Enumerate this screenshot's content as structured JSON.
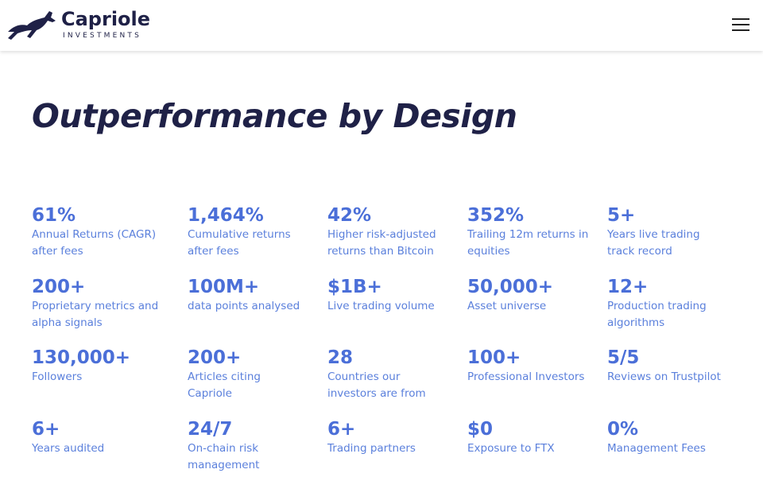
{
  "header": {
    "brand": "Capriole",
    "tagline": "INVESTMENTS"
  },
  "title": "Outperformance by Design",
  "stats": [
    {
      "value": "61%",
      "label": [
        "Annual Returns (CAGR)",
        "after fees"
      ]
    },
    {
      "value": "1,464%",
      "label": [
        "Cumulative returns",
        "after fees"
      ]
    },
    {
      "value": "42%",
      "label": [
        "Higher risk-adjusted",
        "returns than Bitcoin"
      ]
    },
    {
      "value": "352%",
      "label": [
        "Trailing 12m returns in",
        "equities"
      ]
    },
    {
      "value": "5+",
      "label": [
        "Years live trading",
        "track record"
      ]
    },
    {
      "value": "200+",
      "label": [
        "Proprietary metrics and",
        "alpha signals"
      ]
    },
    {
      "value": "100M+",
      "label": [
        "data points analysed"
      ]
    },
    {
      "value": "$1B+",
      "label": [
        "Live trading volume"
      ]
    },
    {
      "value": "50,000+",
      "label": [
        "Asset universe"
      ]
    },
    {
      "value": "12+",
      "label": [
        "Production trading",
        "algorithms"
      ]
    },
    {
      "value": "130,000+",
      "label": [
        "Followers"
      ]
    },
    {
      "value": "200+",
      "label": [
        "Articles citing",
        "Capriole"
      ]
    },
    {
      "value": "28",
      "label": [
        "Countries our",
        "investors are from"
      ]
    },
    {
      "value": "100+",
      "label": [
        "Professional Investors"
      ]
    },
    {
      "value": "5/5",
      "label": [
        "Reviews on Trustpilot"
      ]
    },
    {
      "value": "6+",
      "label": [
        "Years audited"
      ]
    },
    {
      "value": "24/7",
      "label": [
        "On-chain risk",
        "management"
      ]
    },
    {
      "value": "6+",
      "label": [
        "Trading partners"
      ]
    },
    {
      "value": "$0",
      "label": [
        "Exposure to FTX"
      ]
    },
    {
      "value": "0%",
      "label": [
        "Management Fees"
      ]
    }
  ]
}
